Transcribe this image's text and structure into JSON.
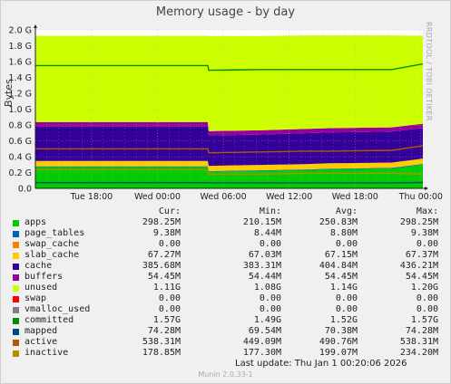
{
  "title": "Memory usage - by day",
  "side_label": "RRDTOOL / TOBI OETIKER",
  "y_unit": "Bytes",
  "x_ticks": [
    "Tue 18:00",
    "Wed 00:00",
    "Wed 06:00",
    "Wed 12:00",
    "Wed 18:00",
    "Thu 00:00"
  ],
  "y_ticks": [
    "0.0",
    "0.2 G",
    "0.4 G",
    "0.6 G",
    "0.8 G",
    "1.0 G",
    "1.2 G",
    "1.4 G",
    "1.6 G",
    "1.8 G",
    "2.0 G"
  ],
  "legend_headers": [
    "Cur:",
    "Min:",
    "Avg:",
    "Max:"
  ],
  "legend": [
    {
      "name": "apps",
      "color": "#00cc00",
      "cur": "298.25M",
      "min": "210.15M",
      "avg": "250.83M",
      "max": "298.25M"
    },
    {
      "name": "page_tables",
      "color": "#0066b3",
      "cur": "9.38M",
      "min": "8.44M",
      "avg": "8.80M",
      "max": "9.38M"
    },
    {
      "name": "swap_cache",
      "color": "#ff8000",
      "cur": "0.00",
      "min": "0.00",
      "avg": "0.00",
      "max": "0.00"
    },
    {
      "name": "slab_cache",
      "color": "#ffcc00",
      "cur": "67.27M",
      "min": "67.03M",
      "avg": "67.15M",
      "max": "67.37M"
    },
    {
      "name": "cache",
      "color": "#330099",
      "cur": "385.68M",
      "min": "383.31M",
      "avg": "404.84M",
      "max": "436.21M"
    },
    {
      "name": "buffers",
      "color": "#990099",
      "cur": "54.45M",
      "min": "54.44M",
      "avg": "54.45M",
      "max": "54.45M"
    },
    {
      "name": "unused",
      "color": "#ccff00",
      "cur": "1.11G",
      "min": "1.08G",
      "avg": "1.14G",
      "max": "1.20G"
    },
    {
      "name": "swap",
      "color": "#ff0000",
      "cur": "0.00",
      "min": "0.00",
      "avg": "0.00",
      "max": "0.00"
    },
    {
      "name": "vmalloc_used",
      "color": "#808080",
      "cur": "0.00",
      "min": "0.00",
      "avg": "0.00",
      "max": "0.00"
    },
    {
      "name": "committed",
      "color": "#008f00",
      "cur": "1.57G",
      "min": "1.49G",
      "avg": "1.52G",
      "max": "1.57G"
    },
    {
      "name": "mapped",
      "color": "#00487d",
      "cur": "74.28M",
      "min": "69.54M",
      "avg": "70.38M",
      "max": "74.28M"
    },
    {
      "name": "active",
      "color": "#b35a00",
      "cur": "538.31M",
      "min": "449.09M",
      "avg": "490.76M",
      "max": "538.31M"
    },
    {
      "name": "inactive",
      "color": "#b38f00",
      "cur": "178.85M",
      "min": "177.30M",
      "avg": "199.07M",
      "max": "234.20M"
    }
  ],
  "last_update": "Last update:  Thu Jan  1 00:20:06 2026",
  "munin_version": "Munin 2.0.33-1",
  "chart_data": {
    "type": "area",
    "title": "Memory usage - by day",
    "ylabel": "Bytes",
    "ylim": [
      0,
      2.0
    ],
    "y_unit_suffix": "G",
    "x": [
      "Tue 13:00",
      "Tue 18:00",
      "Wed 00:00",
      "Wed 05:00",
      "Wed 06:00",
      "Wed 12:00",
      "Wed 16:00",
      "Wed 18:00",
      "Thu 00:00",
      "Thu 00:20"
    ],
    "stacked_series": [
      {
        "name": "apps",
        "color": "#00cc00",
        "values": [
          0.27,
          0.27,
          0.27,
          0.27,
          0.21,
          0.22,
          0.23,
          0.24,
          0.25,
          0.3
        ]
      },
      {
        "name": "page_tables",
        "color": "#0066b3",
        "values": [
          0.009,
          0.009,
          0.009,
          0.009,
          0.008,
          0.009,
          0.009,
          0.009,
          0.009,
          0.009
        ]
      },
      {
        "name": "swap_cache",
        "color": "#ff8000",
        "values": [
          0,
          0,
          0,
          0,
          0,
          0,
          0,
          0,
          0,
          0
        ]
      },
      {
        "name": "slab_cache",
        "color": "#ffcc00",
        "values": [
          0.067,
          0.067,
          0.067,
          0.067,
          0.067,
          0.067,
          0.067,
          0.067,
          0.067,
          0.067
        ]
      },
      {
        "name": "cache",
        "color": "#330099",
        "values": [
          0.436,
          0.436,
          0.436,
          0.436,
          0.383,
          0.383,
          0.39,
          0.39,
          0.39,
          0.386
        ]
      },
      {
        "name": "buffers",
        "color": "#990099",
        "values": [
          0.054,
          0.054,
          0.054,
          0.054,
          0.054,
          0.054,
          0.054,
          0.054,
          0.054,
          0.054
        ]
      },
      {
        "name": "unused",
        "color": "#ccff00",
        "values": [
          1.09,
          1.09,
          1.09,
          1.09,
          1.2,
          1.19,
          1.18,
          1.17,
          1.16,
          1.11
        ]
      }
    ],
    "line_series": [
      {
        "name": "committed",
        "color": "#008f00",
        "values": [
          1.55,
          1.55,
          1.55,
          1.55,
          1.49,
          1.5,
          1.5,
          1.5,
          1.5,
          1.57
        ]
      },
      {
        "name": "mapped",
        "color": "#00487d",
        "values": [
          0.072,
          0.072,
          0.072,
          0.072,
          0.07,
          0.07,
          0.07,
          0.07,
          0.07,
          0.074
        ]
      },
      {
        "name": "active",
        "color": "#b35a00",
        "values": [
          0.5,
          0.5,
          0.5,
          0.5,
          0.449,
          0.46,
          0.47,
          0.47,
          0.48,
          0.538
        ]
      },
      {
        "name": "inactive",
        "color": "#b38f00",
        "values": [
          0.234,
          0.234,
          0.234,
          0.234,
          0.18,
          0.18,
          0.19,
          0.19,
          0.19,
          0.179
        ]
      }
    ]
  }
}
